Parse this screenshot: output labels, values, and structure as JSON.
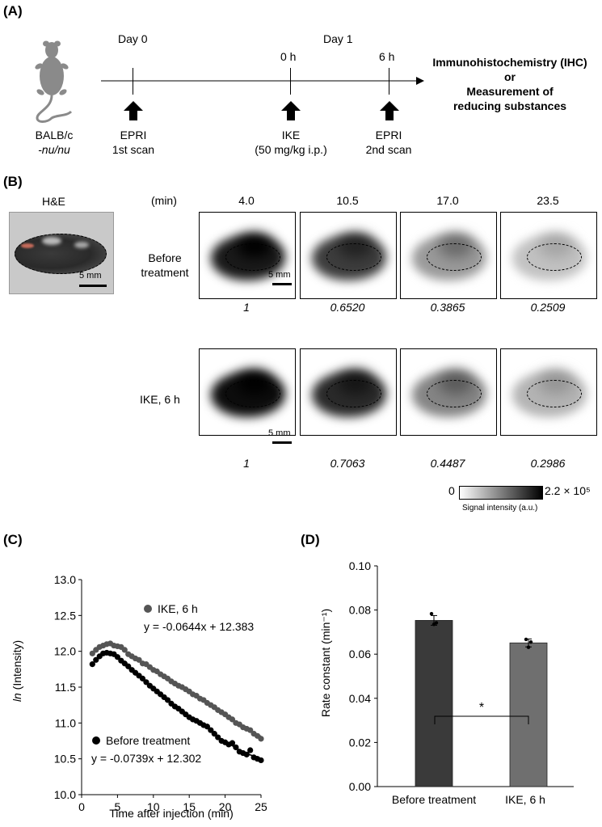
{
  "panelA": {
    "label": "(A)",
    "mouse_strain": "BALB/c",
    "mouse_substrain": "-nu/nu",
    "day0": "Day 0",
    "day1": "Day 1",
    "t0": "0 h",
    "t6": "6 h",
    "event1_line1": "EPRI",
    "event1_line2": "1st scan",
    "event2_line1": "IKE",
    "event2_line2": "(50 mg/kg i.p.)",
    "event3_line1": "EPRI",
    "event3_line2": "2nd scan",
    "outcome_line1": "Immunohistochemistry (IHC)",
    "outcome_line2": "or",
    "outcome_line3": "Measurement of",
    "outcome_line4": "reducing substances"
  },
  "panelB": {
    "label": "(B)",
    "he_title": "H&E",
    "he_scale": "5 mm",
    "time_header": "(min)",
    "times": [
      "4.0",
      "10.5",
      "17.0",
      "23.5"
    ],
    "row1_label_line1": "Before",
    "row1_label_line2": "treatment",
    "row2_label": "IKE, 6 h",
    "scale": "5 mm",
    "row1_values": [
      "1",
      "0.6520",
      "0.3865",
      "0.2509"
    ],
    "row2_values": [
      "1",
      "0.7063",
      "0.4487",
      "0.2986"
    ],
    "colorbar_min": "0",
    "colorbar_max": "2.2 × 10⁵",
    "colorbar_label": "Signal intensity (a.u.)"
  },
  "panelC": {
    "label": "(C)",
    "ylabel_ln": "ln",
    "ylabel_rest": " (Intensity)",
    "xlabel": "Time after injection (min)",
    "legend_ike": "IKE, 6 h",
    "eq_ike": "y = -0.0644x + 12.383",
    "legend_before": "Before treatment",
    "eq_before": "y = -0.0739x + 12.302",
    "colors": {
      "ike": "#555555",
      "before": "#000000"
    }
  },
  "panelD": {
    "label": "(D)",
    "ylabel": "Rate constant (min⁻¹)",
    "significance": "*",
    "colors": {
      "before": "#3a3a3a",
      "ike": "#6f6f6f"
    }
  },
  "chart_data": [
    {
      "type": "scatter",
      "title": "",
      "xlabel": "Time after injection (min)",
      "ylabel": "ln (Intensity)",
      "xlim": [
        0,
        25
      ],
      "ylim": [
        10.0,
        13.0
      ],
      "xticks": [
        "0",
        "5",
        "10",
        "15",
        "20",
        "25"
      ],
      "yticks": [
        "10.0",
        "10.5",
        "11.0",
        "11.5",
        "12.0",
        "12.5",
        "13.0"
      ],
      "x": [
        1.5,
        2.0,
        2.5,
        3.0,
        3.5,
        4.0,
        4.5,
        5.0,
        5.5,
        6.0,
        6.5,
        7.0,
        7.5,
        8.0,
        8.5,
        9.0,
        9.5,
        10.0,
        10.5,
        11.0,
        11.5,
        12.0,
        12.5,
        13.0,
        13.5,
        14.0,
        14.5,
        15.0,
        15.5,
        16.0,
        16.5,
        17.0,
        17.5,
        18.0,
        18.5,
        19.0,
        19.5,
        20.0,
        20.5,
        21.0,
        21.5,
        22.0,
        22.5,
        23.0,
        23.5,
        24.0,
        24.5,
        25.0
      ],
      "series": [
        {
          "name": "IKE, 6 h",
          "fit": "y = -0.0644x + 12.383",
          "values": [
            11.97,
            12.02,
            12.06,
            12.08,
            12.1,
            12.11,
            12.08,
            12.07,
            12.06,
            12.02,
            11.96,
            11.93,
            11.9,
            11.88,
            11.83,
            11.82,
            11.78,
            11.74,
            11.72,
            11.68,
            11.65,
            11.62,
            11.58,
            11.55,
            11.52,
            11.5,
            11.47,
            11.44,
            11.4,
            11.38,
            11.34,
            11.32,
            11.28,
            11.25,
            11.22,
            11.18,
            11.15,
            11.12,
            11.08,
            11.05,
            11.0,
            10.98,
            10.94,
            10.92,
            10.9,
            10.85,
            10.82,
            10.78
          ]
        },
        {
          "name": "Before treatment",
          "fit": "y = -0.0739x + 12.302",
          "values": [
            11.82,
            11.88,
            11.93,
            11.97,
            11.98,
            11.97,
            11.96,
            11.92,
            11.87,
            11.83,
            11.79,
            11.74,
            11.7,
            11.66,
            11.62,
            11.57,
            11.52,
            11.48,
            11.44,
            11.4,
            11.36,
            11.32,
            11.27,
            11.23,
            11.2,
            11.16,
            11.12,
            11.08,
            11.05,
            11.03,
            11.0,
            10.97,
            10.95,
            10.9,
            10.85,
            10.8,
            10.75,
            10.73,
            10.7,
            10.72,
            10.66,
            10.6,
            10.58,
            10.56,
            10.62,
            10.52,
            10.5,
            10.48
          ]
        }
      ]
    },
    {
      "type": "bar",
      "title": "",
      "xlabel": "",
      "ylabel": "Rate constant (min⁻¹)",
      "ylim": [
        0.0,
        0.1
      ],
      "yticks": [
        "0.00",
        "0.02",
        "0.04",
        "0.06",
        "0.08",
        "0.10"
      ],
      "categories": [
        "Before treatment",
        "IKE, 6 h"
      ],
      "values": [
        0.0753,
        0.0651
      ],
      "errors": [
        0.0022,
        0.0018
      ],
      "points": [
        [
          0.0783,
          0.0742,
          0.0735
        ],
        [
          0.0667,
          0.0655,
          0.0631
        ]
      ],
      "significance": "*"
    }
  ]
}
